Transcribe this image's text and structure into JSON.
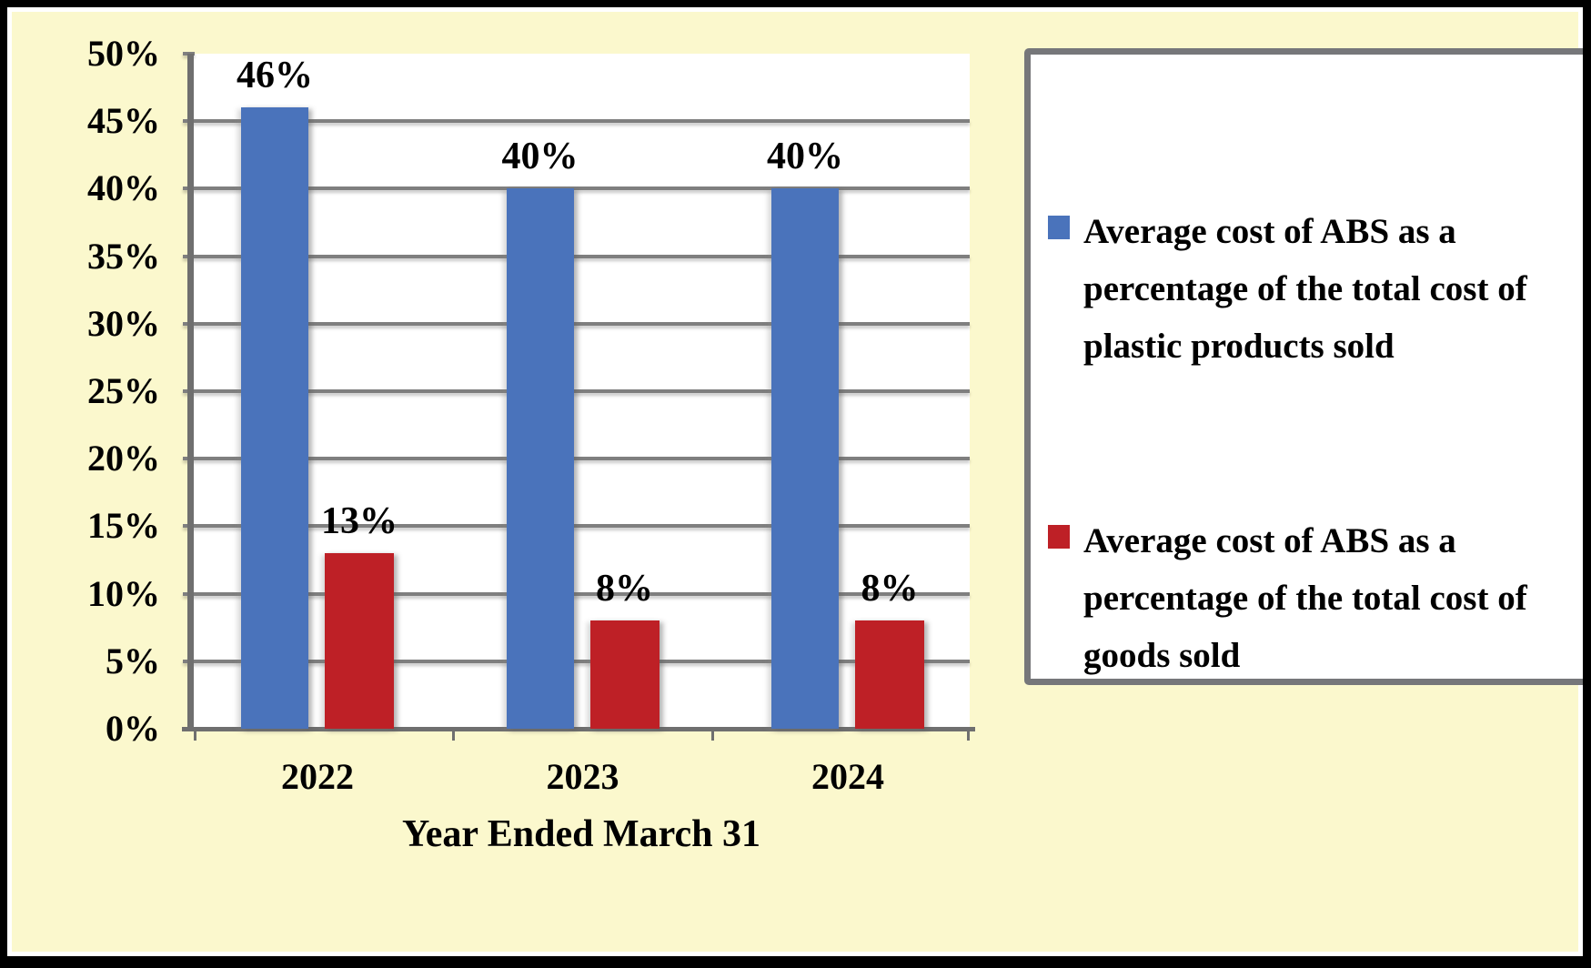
{
  "chart_data": {
    "type": "bar",
    "title": "",
    "categories": [
      "2022",
      "2023",
      "2024"
    ],
    "series": [
      {
        "name": "Average cost of ABS as a percentage of the total cost of plastic products sold",
        "color": "#4A73BB",
        "values": [
          46,
          40,
          40
        ],
        "data_labels": [
          "46%",
          "40%",
          "40%"
        ]
      },
      {
        "name": "Average cost of ABS as a percentage of the total cost of goods sold",
        "color": "#BE2026",
        "values": [
          13,
          8,
          8
        ],
        "data_labels": [
          "13%",
          "8%",
          "8%"
        ]
      }
    ],
    "xlabel": "Year Ended March 31",
    "ylabel": "",
    "ylim": [
      0,
      50
    ],
    "ytick_step": 5,
    "ytick_labels": [
      "0%",
      "5%",
      "10%",
      "15%",
      "20%",
      "25%",
      "30%",
      "35%",
      "40%",
      "45%",
      "50%"
    ],
    "grid": true,
    "legend_position": "right"
  },
  "legend": {
    "entries": [
      {
        "swatch_color": "#4A73BB",
        "lines": [
          "Average cost of ABS as a",
          "percentage of the total cost of",
          "plastic products sold"
        ]
      },
      {
        "swatch_color": "#BE2026",
        "lines": [
          "Average cost of ABS as a",
          "percentage of the total cost of",
          "goods sold"
        ]
      }
    ]
  },
  "colors": {
    "background": "#FBF8CD",
    "frame_border": "#000000",
    "frame_inner_line": "#FFFFFF",
    "plot_background": "#FFFFFF",
    "gridline": "#7F7F7F",
    "axis_line": "#6F6F6F",
    "legend_border": "#76777A",
    "legend_background": "#FFFFFF",
    "text": "#000000"
  }
}
